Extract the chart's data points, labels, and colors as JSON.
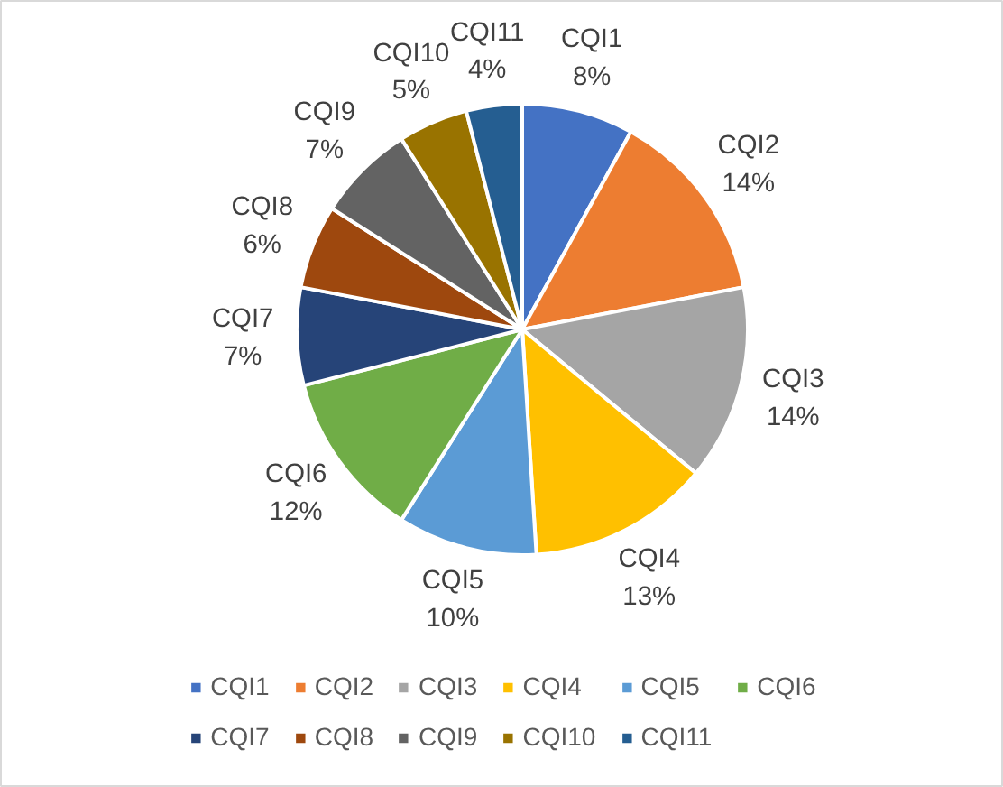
{
  "chart_data": {
    "type": "pie",
    "categories": [
      "CQI1",
      "CQI2",
      "CQI3",
      "CQI4",
      "CQI5",
      "CQI6",
      "CQI7",
      "CQI8",
      "CQI9",
      "CQI10",
      "CQI11"
    ],
    "values": [
      8,
      14,
      14,
      13,
      10,
      12,
      7,
      6,
      7,
      5,
      4
    ],
    "value_labels": [
      "8%",
      "14%",
      "14%",
      "13%",
      "10%",
      "12%",
      "7%",
      "6%",
      "7%",
      "5%",
      "4%"
    ],
    "colors": [
      "#4472c4",
      "#ed7d31",
      "#a5a5a5",
      "#ffc000",
      "#5b9bd5",
      "#70ad47",
      "#264478",
      "#9e480e",
      "#636363",
      "#997300",
      "#255e91"
    ],
    "legend": "bottom"
  }
}
